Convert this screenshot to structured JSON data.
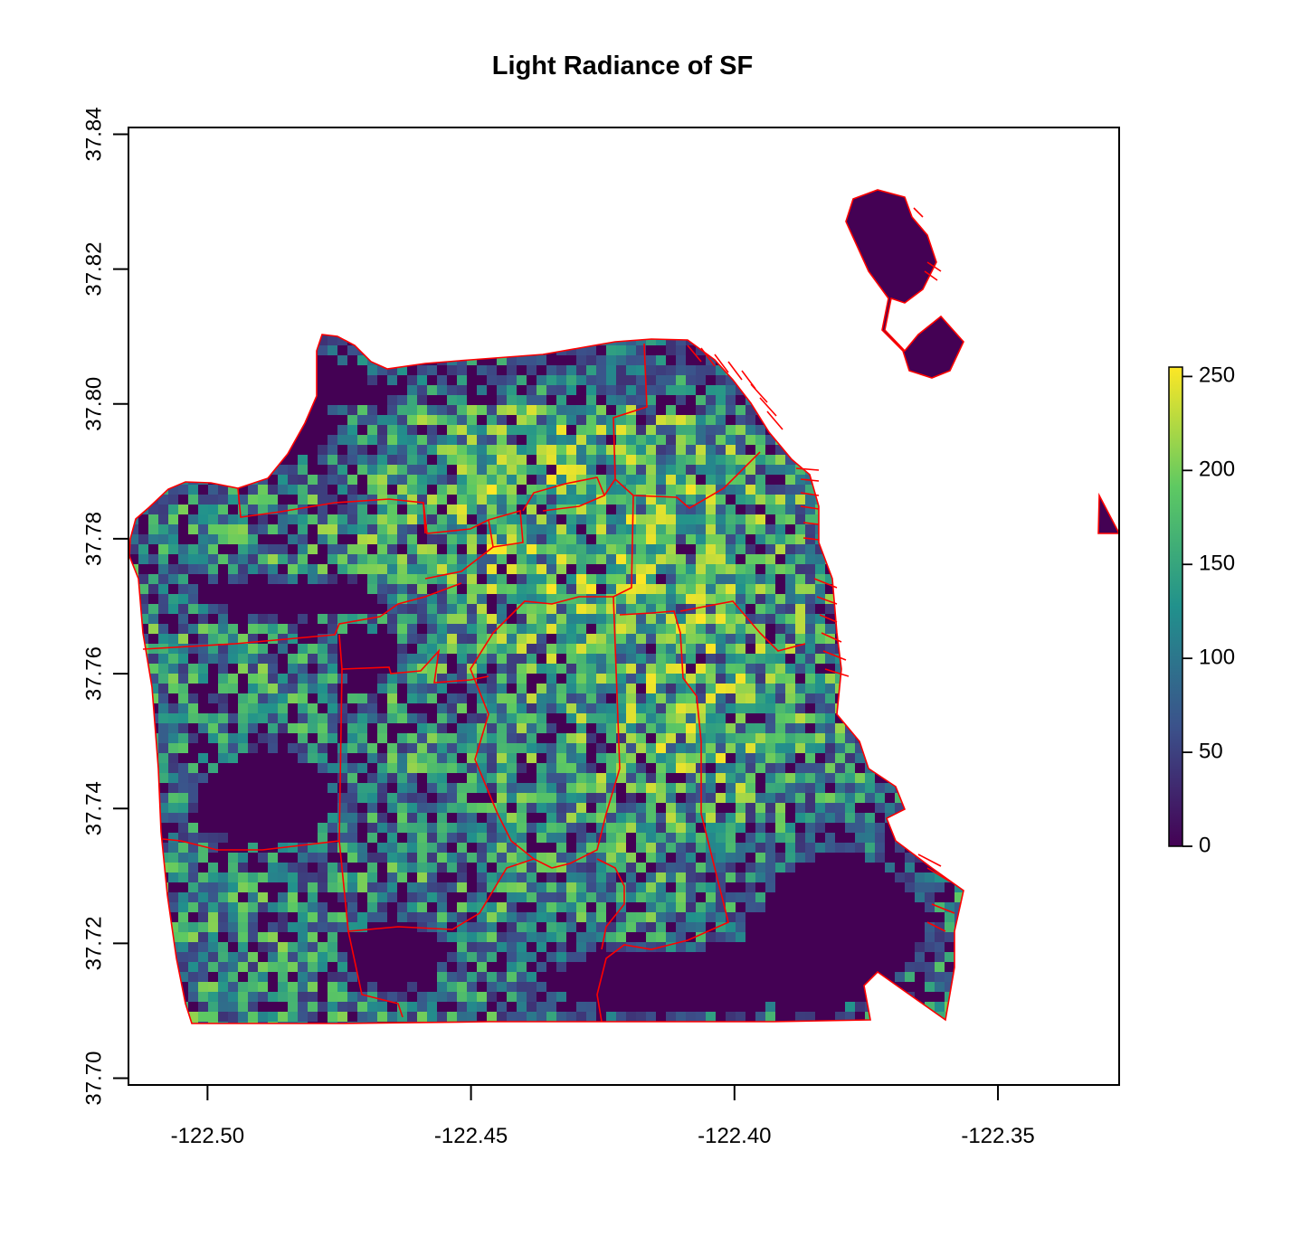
{
  "chart_data": {
    "type": "heatmap",
    "title": "Light Radiance of SF",
    "xlabel": "",
    "ylabel": "",
    "x_axis": {
      "ticks": [
        -122.5,
        -122.45,
        -122.4,
        -122.35
      ],
      "tick_labels": [
        "-122.50",
        "-122.45",
        "-122.40",
        "-122.35"
      ],
      "range": [
        -122.515,
        -122.327
      ]
    },
    "y_axis": {
      "ticks": [
        37.7,
        37.72,
        37.74,
        37.76,
        37.78,
        37.8,
        37.82,
        37.84
      ],
      "tick_labels": [
        "37.70",
        "37.72",
        "37.74",
        "37.76",
        "37.78",
        "37.80",
        "37.82",
        "37.84"
      ],
      "range": [
        37.699,
        37.841
      ]
    },
    "colorbar": {
      "range": [
        0,
        255
      ],
      "ticks": [
        0,
        50,
        100,
        150,
        200,
        250
      ],
      "tick_labels": [
        "0",
        "50",
        "100",
        "150",
        "200",
        "250"
      ],
      "palette": [
        "#440154",
        "#3b528b",
        "#21918c",
        "#5ec962",
        "#fde725"
      ],
      "placement": "right"
    },
    "overlay": {
      "type": "district boundaries",
      "color": "#ff0000"
    },
    "grid": false
  }
}
